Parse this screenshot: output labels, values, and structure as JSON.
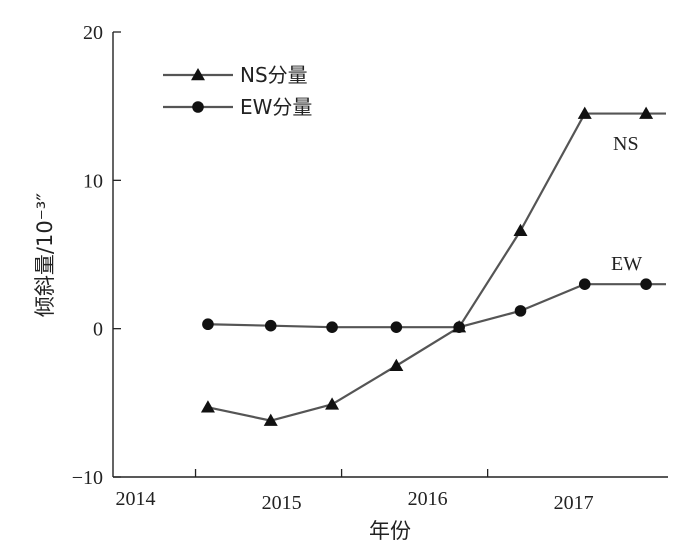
{
  "chart_data": {
    "type": "line",
    "xlabel": "年份",
    "ylabel": "倾斜量/10⁻³″",
    "xlim": [
      2013.75,
      2017.55
    ],
    "ylim": [
      -10,
      20
    ],
    "x_ticks": [
      2014,
      2015,
      2016,
      2017
    ],
    "x_tick_labels": [
      "2014",
      "2015",
      "2016",
      "2017"
    ],
    "y_ticks": [
      -10,
      0,
      10,
      20
    ],
    "y_tick_labels": [
      "−10",
      "0",
      "10",
      "20"
    ],
    "legend_position": "top-left",
    "grid": false,
    "series": [
      {
        "name": "NS分量",
        "marker": "triangle",
        "color": "#555555",
        "marker_color": "#111111",
        "x": [
          2014.4,
          2014.83,
          2015.25,
          2015.69,
          2016.12,
          2016.54,
          2016.98,
          2017.4
        ],
        "y": [
          -5.3,
          -6.2,
          -5.1,
          -2.5,
          0.1,
          6.6,
          14.5,
          14.5
        ],
        "line_extends_to_x": 2017.75,
        "annotation": "NS"
      },
      {
        "name": "EW分量",
        "marker": "circle",
        "color": "#555555",
        "marker_color": "#111111",
        "x": [
          2014.4,
          2014.83,
          2015.25,
          2015.69,
          2016.12,
          2016.54,
          2016.98,
          2017.4
        ],
        "y": [
          0.3,
          0.2,
          0.1,
          0.1,
          0.1,
          1.2,
          3.0,
          3.0
        ],
        "line_extends_to_x": 2017.75,
        "annotation": "EW"
      }
    ]
  }
}
